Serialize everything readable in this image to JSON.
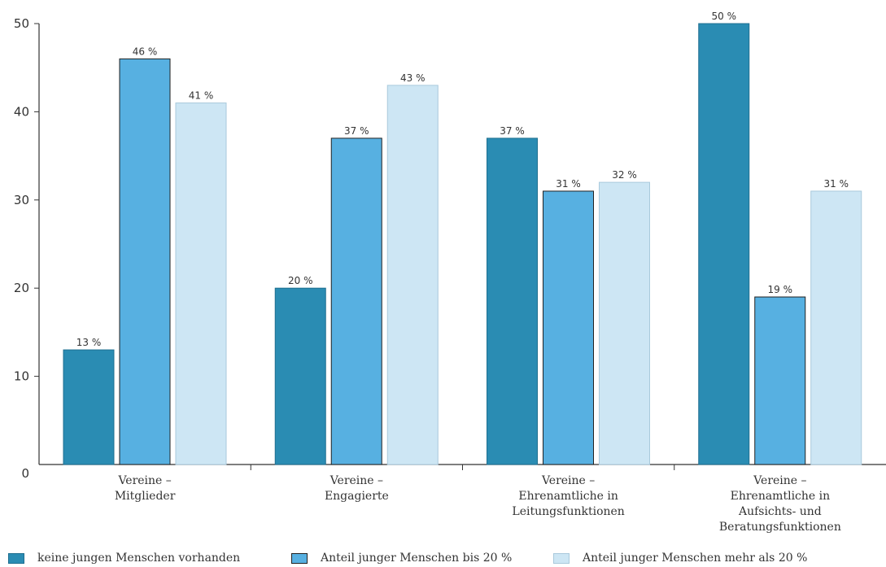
{
  "chart_data": {
    "type": "bar",
    "title": "",
    "xlabel": "",
    "ylabel": "",
    "ylim": [
      0,
      50
    ],
    "yticks": [
      "0",
      "10",
      "20",
      "30",
      "40",
      "50"
    ],
    "grid": false,
    "legend_position": "bottom",
    "categories": [
      [
        "Vereine –",
        "Mitglieder"
      ],
      [
        "Vereine –",
        "Engagierte"
      ],
      [
        "Vereine –",
        "Ehrenamtliche in",
        "Leitungsfunktionen"
      ],
      [
        "Vereine –",
        "Ehrenamtliche in",
        "Aufsichts- und",
        "Beratungsfunktionen"
      ]
    ],
    "series": [
      {
        "name": "keine jungen Menschen vorhanden",
        "color": "#2a8cb3",
        "values": [
          13,
          20,
          37,
          50
        ],
        "labels": [
          "13 %",
          "20 %",
          "37 %",
          "50 %"
        ]
      },
      {
        "name": "Anteil junger Menschen bis 20 %",
        "color": "#57b0e1",
        "values": [
          46,
          37,
          31,
          19
        ],
        "labels": [
          "46 %",
          "37 %",
          "31 %",
          "19 %"
        ]
      },
      {
        "name": "Anteil junger Menschen mehr als 20 %",
        "color": "#cde6f4",
        "values": [
          41,
          43,
          32,
          31
        ],
        "labels": [
          "41 %",
          "43 %",
          "32 %",
          "31 %"
        ]
      }
    ]
  }
}
